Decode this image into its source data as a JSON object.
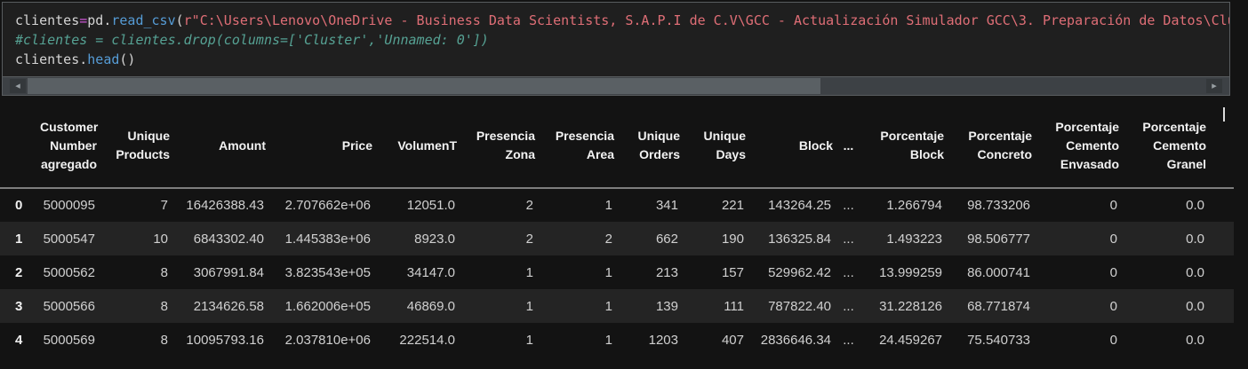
{
  "code_editor": {
    "lines": [
      {
        "tokens": [
          {
            "text": "clientes",
            "type": "plain"
          },
          {
            "text": "=",
            "type": "operator"
          },
          {
            "text": "pd",
            "type": "plain"
          },
          {
            "text": ".",
            "type": "plain"
          },
          {
            "text": "read_csv",
            "type": "function"
          },
          {
            "text": "(",
            "type": "plain"
          },
          {
            "text": "r\"C:\\Users\\Lenovo\\OneDrive - Business Data Scientists, S.A.P.I de C.V\\GCC - Actualización Simulador GCC\\3. Preparación de Datos\\Clu",
            "type": "string"
          }
        ]
      },
      {
        "tokens": [
          {
            "text": "#clientes = clientes.drop(columns=['Cluster','Unnamed: 0'])",
            "type": "comment"
          }
        ]
      },
      {
        "tokens": [
          {
            "text": "clientes",
            "type": "plain"
          },
          {
            "text": ".",
            "type": "plain"
          },
          {
            "text": "head",
            "type": "function"
          },
          {
            "text": "()",
            "type": "plain"
          }
        ]
      }
    ],
    "scrollbar": {
      "left_arrow": "◂",
      "right_arrow": "▸"
    }
  },
  "dataframe": {
    "columns": [
      {
        "key": "index",
        "label": ""
      },
      {
        "key": "customer_number_agregado",
        "label": "Customer Number agregado"
      },
      {
        "key": "unique_products",
        "label": "Unique Products"
      },
      {
        "key": "amount",
        "label": "Amount"
      },
      {
        "key": "price",
        "label": "Price"
      },
      {
        "key": "volument",
        "label": "VolumenT"
      },
      {
        "key": "presencia_zona",
        "label": "Presencia Zona"
      },
      {
        "key": "presencia_area",
        "label": "Presencia Area"
      },
      {
        "key": "unique_orders",
        "label": "Unique Orders"
      },
      {
        "key": "unique_days",
        "label": "Unique Days"
      },
      {
        "key": "block",
        "label": "Block"
      },
      {
        "key": "dots",
        "label": "..."
      },
      {
        "key": "porcentaje_block",
        "label": "Porcentaje Block"
      },
      {
        "key": "porcentaje_concreto",
        "label": "Porcentaje Concreto"
      },
      {
        "key": "porcentaje_cemento_envasado",
        "label": "Porcentaje Cemento Envasado"
      },
      {
        "key": "porcentaje_cemento_granel",
        "label": "Porcentaje Cemento Granel"
      }
    ],
    "rows": [
      {
        "index": "0",
        "values": [
          "5000095",
          "7",
          "16426388.43",
          "2.707662e+06",
          "12051.0",
          "2",
          "1",
          "341",
          "221",
          "143264.25",
          "...",
          "1.266794",
          "98.733206",
          "0",
          "0.0"
        ]
      },
      {
        "index": "1",
        "values": [
          "5000547",
          "10",
          "6843302.40",
          "1.445383e+06",
          "8923.0",
          "2",
          "2",
          "662",
          "190",
          "136325.84",
          "...",
          "1.493223",
          "98.506777",
          "0",
          "0.0"
        ]
      },
      {
        "index": "2",
        "values": [
          "5000562",
          "8",
          "3067991.84",
          "3.823543e+05",
          "34147.0",
          "1",
          "1",
          "213",
          "157",
          "529962.42",
          "...",
          "13.999259",
          "86.000741",
          "0",
          "0.0"
        ]
      },
      {
        "index": "3",
        "values": [
          "5000566",
          "8",
          "2134626.58",
          "1.662006e+05",
          "46869.0",
          "1",
          "1",
          "139",
          "111",
          "787822.40",
          "...",
          "31.228126",
          "68.771874",
          "0",
          "0.0"
        ]
      },
      {
        "index": "4",
        "values": [
          "5000569",
          "8",
          "10095793.16",
          "2.037810e+06",
          "222514.0",
          "1",
          "1",
          "1203",
          "407",
          "2836646.34",
          "...",
          "24.459267",
          "75.540733",
          "0",
          "0.0"
        ]
      }
    ]
  },
  "colors": {
    "page_background": "#131313",
    "code_cell_background": "#1f1f1f",
    "code_operator": "#cd56d6",
    "code_function": "#569cd6",
    "code_string": "#df6e76",
    "code_comment": "#56a294",
    "row_stripe": "#242424",
    "header_text": "#f2f2f2",
    "cell_text": "#d0d0d0"
  }
}
